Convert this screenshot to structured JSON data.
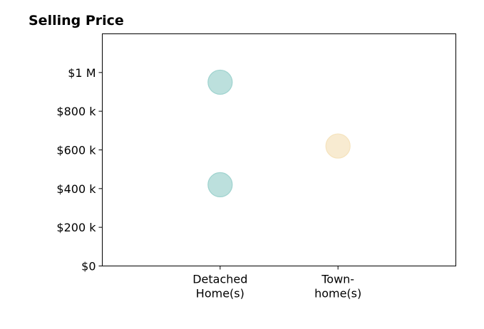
{
  "chart_data": {
    "type": "scatter",
    "title": "Selling Price",
    "xlabel": "",
    "ylabel": "",
    "categories": [
      [
        "Detached",
        "Home(s)"
      ],
      [
        "Town-",
        "home(s)"
      ]
    ],
    "x_domain": [
      -1,
      2
    ],
    "ylim": [
      0,
      1200000
    ],
    "yticks": [
      {
        "value": 0,
        "label": "$0"
      },
      {
        "value": 200000,
        "label": "$200 k"
      },
      {
        "value": 400000,
        "label": "$400 k"
      },
      {
        "value": 600000,
        "label": "$600 k"
      },
      {
        "value": 800000,
        "label": "$800 k"
      },
      {
        "value": 1000000,
        "label": "$1 M"
      }
    ],
    "grid": false,
    "series": [
      {
        "color": "#9fd3cf",
        "points": [
          {
            "category": 0,
            "y": 950000
          },
          {
            "category": 0,
            "y": 420000
          }
        ]
      },
      {
        "color": "#f5e3bd",
        "points": [
          {
            "category": 1,
            "y": 620000
          }
        ]
      }
    ]
  }
}
